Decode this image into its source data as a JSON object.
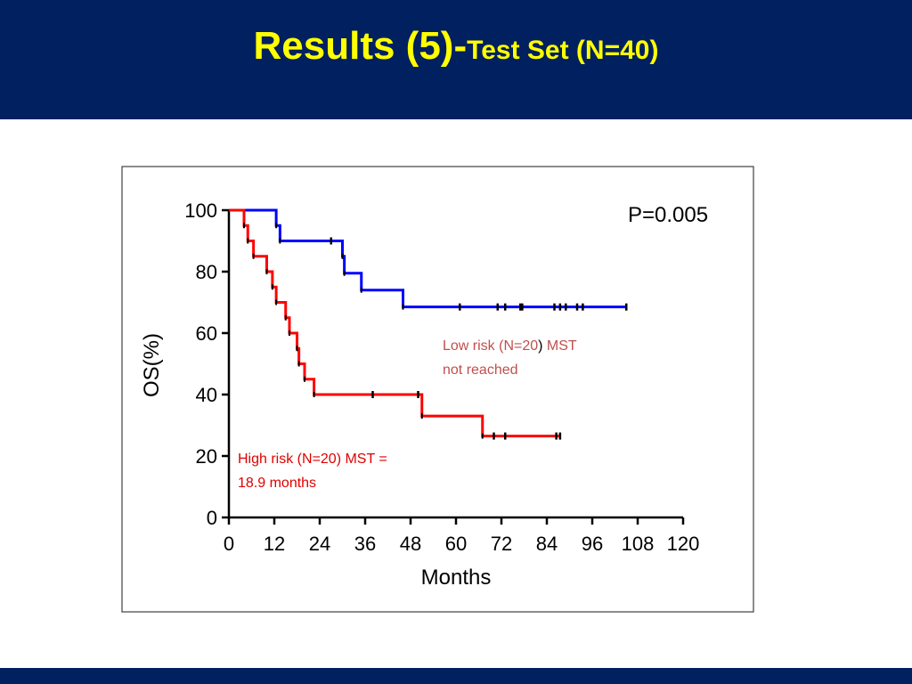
{
  "slide": {
    "title_main": "Results (5)-",
    "title_sub": "Test Set (N=40)"
  },
  "colors": {
    "header_bg": "#002060",
    "title": "#ffff00",
    "low_risk": "#0000ff",
    "high_risk": "#ff0000",
    "low_risk_label": "#c0504d",
    "high_risk_label": "#e00000"
  },
  "chart_data": {
    "type": "line",
    "subtype": "kaplan-meier-step",
    "xlabel": "Months",
    "ylabel": "OS(%)",
    "xlim": [
      0,
      120
    ],
    "ylim": [
      0,
      100
    ],
    "xticks": [
      0,
      12,
      24,
      36,
      48,
      60,
      72,
      84,
      96,
      108,
      120
    ],
    "yticks": [
      0,
      20,
      40,
      60,
      80,
      100
    ],
    "grid": false,
    "annotation": "P=0.005",
    "series": [
      {
        "key": "low",
        "label_parts": [
          "Low risk (N=20",
          ")",
          " MST",
          "not reached"
        ],
        "color": "#0000ff",
        "steps": [
          [
            0,
            100
          ],
          [
            12.5,
            95
          ],
          [
            13.5,
            90
          ],
          [
            30,
            85
          ],
          [
            30.5,
            79.5
          ],
          [
            35,
            74
          ],
          [
            46,
            68.5
          ],
          [
            105,
            68.5
          ]
        ],
        "censors": [
          [
            27,
            90
          ],
          [
            61,
            68.5
          ],
          [
            71,
            68.5
          ],
          [
            73,
            68.5
          ],
          [
            77,
            68.5
          ],
          [
            77.5,
            68.5
          ],
          [
            86,
            68.5
          ],
          [
            87.5,
            68.5
          ],
          [
            89,
            68.5
          ],
          [
            92,
            68.5
          ],
          [
            93.5,
            68.5
          ],
          [
            105,
            68.5
          ]
        ]
      },
      {
        "key": "high",
        "label_parts": [
          "High risk (N=20) MST =",
          "18.9 months"
        ],
        "color": "#ff0000",
        "steps": [
          [
            0,
            100
          ],
          [
            4,
            95
          ],
          [
            5,
            90
          ],
          [
            6.5,
            85
          ],
          [
            10,
            80
          ],
          [
            11.5,
            75
          ],
          [
            12.5,
            70
          ],
          [
            15,
            65
          ],
          [
            16,
            60
          ],
          [
            18,
            55
          ],
          [
            18.5,
            50
          ],
          [
            20,
            45
          ],
          [
            22.5,
            40
          ],
          [
            51,
            33
          ],
          [
            67,
            26.5
          ],
          [
            87.5,
            26.5
          ]
        ],
        "censors": [
          [
            38,
            40
          ],
          [
            50,
            40
          ],
          [
            70,
            26.5
          ],
          [
            73,
            26.5
          ],
          [
            86.5,
            26.5
          ],
          [
            87.5,
            26.5
          ]
        ]
      }
    ]
  }
}
